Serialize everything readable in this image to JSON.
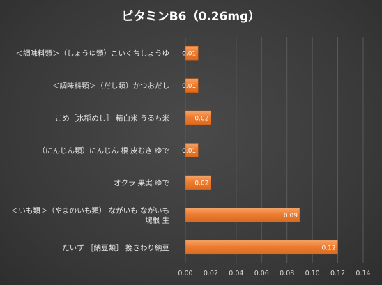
{
  "chart_data": {
    "type": "bar",
    "orientation": "horizontal",
    "title": "ビタミンB6（0.26mg）",
    "categories": [
      "＜調味料類＞（しょうゆ類）こいくちしょうゆ",
      "＜調味料類＞（だし類）かつおだし",
      "こめ［水稲めし］ 精白米 うるち米",
      "（にんじん類）にんじん 根 皮むき ゆで",
      "オクラ 果実 ゆで",
      "＜いも類＞（やまのいも類） ながいも ながいも 塊根 生",
      "だいず ［納豆類］ 挽きわり納豆"
    ],
    "category_lines": [
      [
        "＜調味料類＞（しょうゆ類）こいくちしょうゆ"
      ],
      [
        "＜調味料類＞（だし類）かつおだし"
      ],
      [
        "こめ［水稲めし］ 精白米 うるち米"
      ],
      [
        "（にんじん類）にんじん 根 皮むき ゆで"
      ],
      [
        "オクラ 果実 ゆで"
      ],
      [
        "＜いも類＞（やまのいも類） ながいも ながいも",
        "塊根 生"
      ],
      [
        "だいず ［納豆類］ 挽きわり納豆"
      ]
    ],
    "values": [
      0.01,
      0.01,
      0.02,
      0.01,
      0.02,
      0.09,
      0.12
    ],
    "data_labels": [
      "0.01",
      "0.01",
      "0.02",
      "0.01",
      "0.02",
      "0.09",
      "0.12"
    ],
    "xlim": [
      0,
      0.14
    ],
    "xticks": [
      0,
      0.02,
      0.04,
      0.06,
      0.08,
      0.1,
      0.12,
      0.14
    ],
    "xtick_labels": [
      "0.00",
      "0.02",
      "0.04",
      "0.06",
      "0.08",
      "0.10",
      "0.12",
      "0.14"
    ],
    "grid": "vertical",
    "legend": "none",
    "colors": {
      "bar": "#ed7d31",
      "bar_highlight": "#f4a56b",
      "gridline": "#5a5a5a",
      "text": "#e6e6e6"
    }
  }
}
